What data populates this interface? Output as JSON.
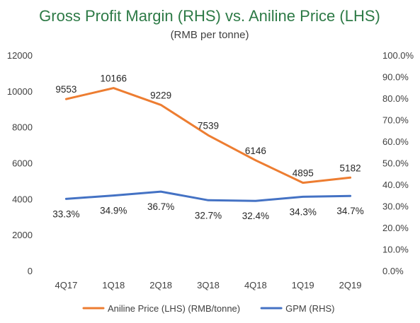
{
  "chart_data": {
    "type": "line",
    "title": "Gross Profit Margin (RHS) vs. Aniline Price (LHS)",
    "subtitle": "(RMB per tonne)",
    "categories": [
      "4Q17",
      "1Q18",
      "2Q18",
      "3Q18",
      "4Q18",
      "1Q19",
      "2Q19"
    ],
    "y_left": {
      "min": 0,
      "max": 12000,
      "ticks": [
        "0",
        "2000",
        "4000",
        "6000",
        "8000",
        "10000",
        "12000"
      ]
    },
    "y_right": {
      "min": 0,
      "max": 1,
      "ticks": [
        "0.0%",
        "10.0%",
        "20.0%",
        "30.0%",
        "40.0%",
        "50.0%",
        "60.0%",
        "70.0%",
        "80.0%",
        "90.0%",
        "100.0%"
      ]
    },
    "grid": false,
    "legend_position": "bottom",
    "series": [
      {
        "name": "Aniline Price (LHS) (RMB/tonne)",
        "axis": "left",
        "color": "#ed7d31",
        "values": [
          9553,
          10166,
          9229,
          7539,
          6146,
          4895,
          5182
        ],
        "labels": [
          "9553",
          "10166",
          "9229",
          "7539",
          "6146",
          "4895",
          "5182"
        ]
      },
      {
        "name": "GPM (RHS)",
        "axis": "right",
        "color": "#4472c4",
        "values": [
          0.333,
          0.349,
          0.367,
          0.327,
          0.324,
          0.343,
          0.347
        ],
        "labels": [
          "33.3%",
          "34.9%",
          "36.7%",
          "32.7%",
          "32.4%",
          "34.3%",
          "34.7%"
        ]
      }
    ]
  }
}
